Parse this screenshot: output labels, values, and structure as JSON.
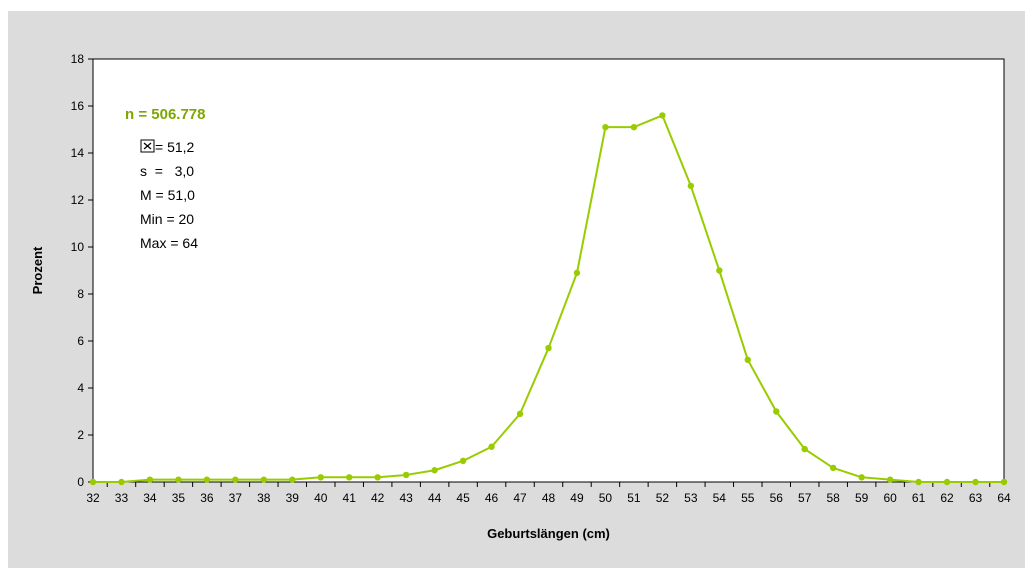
{
  "chart_data": {
    "type": "line",
    "xlabel": "Geburtslängen (cm)",
    "ylabel": "Prozent",
    "xlim": [
      32,
      64
    ],
    "ylim": [
      0,
      18
    ],
    "y_ticks": [
      0,
      2,
      4,
      6,
      8,
      10,
      12,
      14,
      16,
      18
    ],
    "x": [
      32,
      33,
      34,
      35,
      36,
      37,
      38,
      39,
      40,
      41,
      42,
      43,
      44,
      45,
      46,
      47,
      48,
      49,
      50,
      51,
      52,
      53,
      54,
      55,
      56,
      57,
      58,
      59,
      60,
      61,
      62,
      63,
      64
    ],
    "values": [
      0.0,
      0.0,
      0.1,
      0.1,
      0.1,
      0.1,
      0.1,
      0.1,
      0.2,
      0.2,
      0.2,
      0.3,
      0.5,
      0.9,
      1.5,
      2.9,
      5.7,
      8.9,
      15.1,
      15.1,
      15.6,
      12.6,
      9.0,
      5.2,
      3.0,
      1.4,
      0.6,
      0.2,
      0.1,
      0.0,
      0.0,
      0.0,
      0.0
    ],
    "grid": false,
    "colors": {
      "series": "#99cc00",
      "marker": "#99cc00",
      "n_label": "#7fa600",
      "plot_bg": "#ffffff",
      "frame_bg": "#dcdcdc"
    }
  },
  "annotations": {
    "n_label": "n = 506.778",
    "stats": [
      {
        "icon": "mean-symbol-icon",
        "text": "= 51,2"
      },
      {
        "text": "s  =   3,0"
      },
      {
        "text": "M = 51,0"
      },
      {
        "text": "Min = 20"
      },
      {
        "text": "Max = 64"
      }
    ]
  }
}
